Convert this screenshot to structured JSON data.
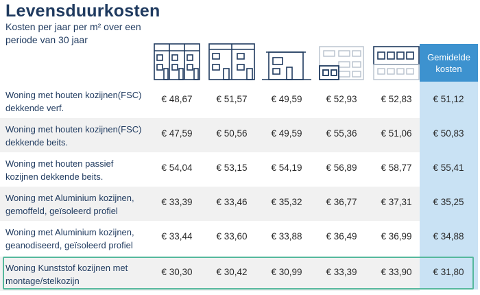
{
  "title": "Levensduurkosten",
  "subtitle": "Kosten per jaar per m² over een periode van 30 jaar",
  "header": {
    "icons": [
      "terraced-houses-icon",
      "double-house-icon",
      "detached-house-icon",
      "apartment-block-icon",
      "row-block-icon"
    ],
    "average_label": "Gemidelde kosten"
  },
  "rows": [
    {
      "label": "Woning met houten kozijnen(FSC) dekkende verf.",
      "values": [
        "€ 48,67",
        "€ 51,57",
        "€ 49,59",
        "€ 52,93",
        "€ 52,83"
      ],
      "average": "€ 51,12"
    },
    {
      "label": "Woning met houten kozijnen(FSC) dekkende beits.",
      "values": [
        "€ 47,59",
        "€ 50,56",
        "€ 49,59",
        "€ 55,36",
        "€ 51,06"
      ],
      "average": "€ 50,83"
    },
    {
      "label": "Woning met houten passief kozijnen dekkende beits.",
      "values": [
        "€ 54,04",
        "€ 53,15",
        "€ 54,19",
        "€ 56,89",
        "€ 58,77"
      ],
      "average": "€ 55,41"
    },
    {
      "label": "Woning met Aluminium kozijnen, gemoffeld, geïsoleerd profiel",
      "values": [
        "€ 33,39",
        "€ 33,46",
        "€ 35,32",
        "€ 36,77",
        "€ 37,31"
      ],
      "average": "€ 35,25"
    },
    {
      "label": "Woning met Aluminium kozijnen, geanodiseerd, geïsoleerd profiel",
      "values": [
        "€ 33,44",
        "€ 33,60",
        "€ 33,88",
        "€ 36,49",
        "€ 36,99"
      ],
      "average": "€ 34,88"
    },
    {
      "label": "Woning Kunststof kozijnen met montage/stelkozijn",
      "values": [
        "€ 30,30",
        "€ 30,42",
        "€ 30,99",
        "€ 33,39",
        "€ 33,90"
      ],
      "average": "€ 31,80"
    }
  ],
  "colors": {
    "navy": "#1f3a5f",
    "avg_header": "#3d92cf",
    "avg_column": "#c9e2f4",
    "highlight": "#55b89c",
    "row_shade": "#f1f1f1"
  }
}
